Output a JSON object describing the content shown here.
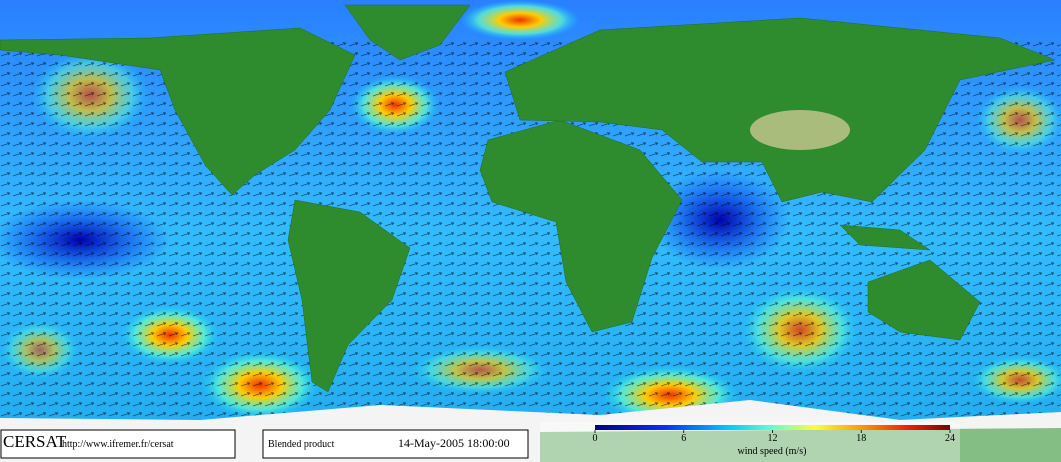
{
  "footer": {
    "org": "CERSAT",
    "url": "http://www.ifremer.fr/cersat",
    "product": "Blended product",
    "timestamp": "14-May-2005 18:00:00"
  },
  "colorbar": {
    "lim": [
      0,
      24
    ],
    "ticks": [
      0,
      6,
      12,
      18,
      24
    ],
    "label": "wind speed (m/s)"
  }
}
